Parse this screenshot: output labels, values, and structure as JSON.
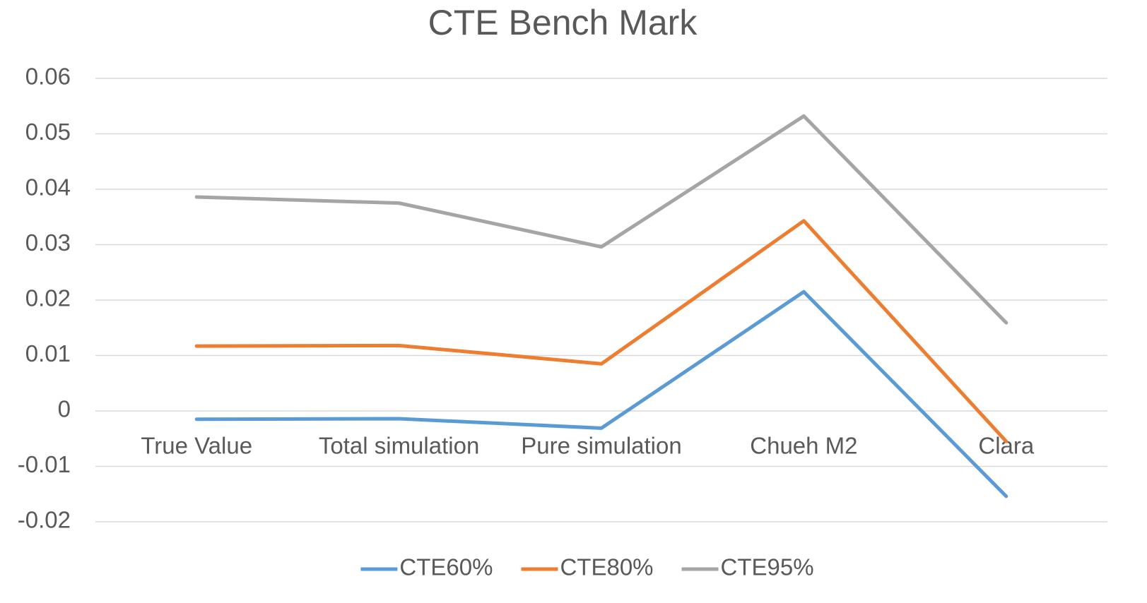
{
  "chart_data": {
    "type": "line",
    "title": "CTE Bench Mark",
    "categories": [
      "True Value",
      "Total simulation",
      "Pure simulation",
      "Chueh M2",
      "Clara"
    ],
    "series": [
      {
        "name": "CTE60%",
        "color": "#5b9bd5",
        "values": [
          -0.0015,
          -0.0014,
          -0.0031,
          0.0215,
          -0.0154
        ]
      },
      {
        "name": "CTE80%",
        "color": "#ed7d31",
        "values": [
          0.0117,
          0.0118,
          0.0085,
          0.0343,
          -0.0055
        ]
      },
      {
        "name": "CTE95%",
        "color": "#a5a5a5",
        "values": [
          0.0386,
          0.0375,
          0.0296,
          0.0532,
          0.0159
        ]
      }
    ],
    "ylim": [
      -0.02,
      0.06
    ],
    "yticks": [
      -0.02,
      -0.01,
      0,
      0.01,
      0.02,
      0.03,
      0.04,
      0.05,
      0.06
    ],
    "grid": true,
    "legend": "bottom"
  }
}
